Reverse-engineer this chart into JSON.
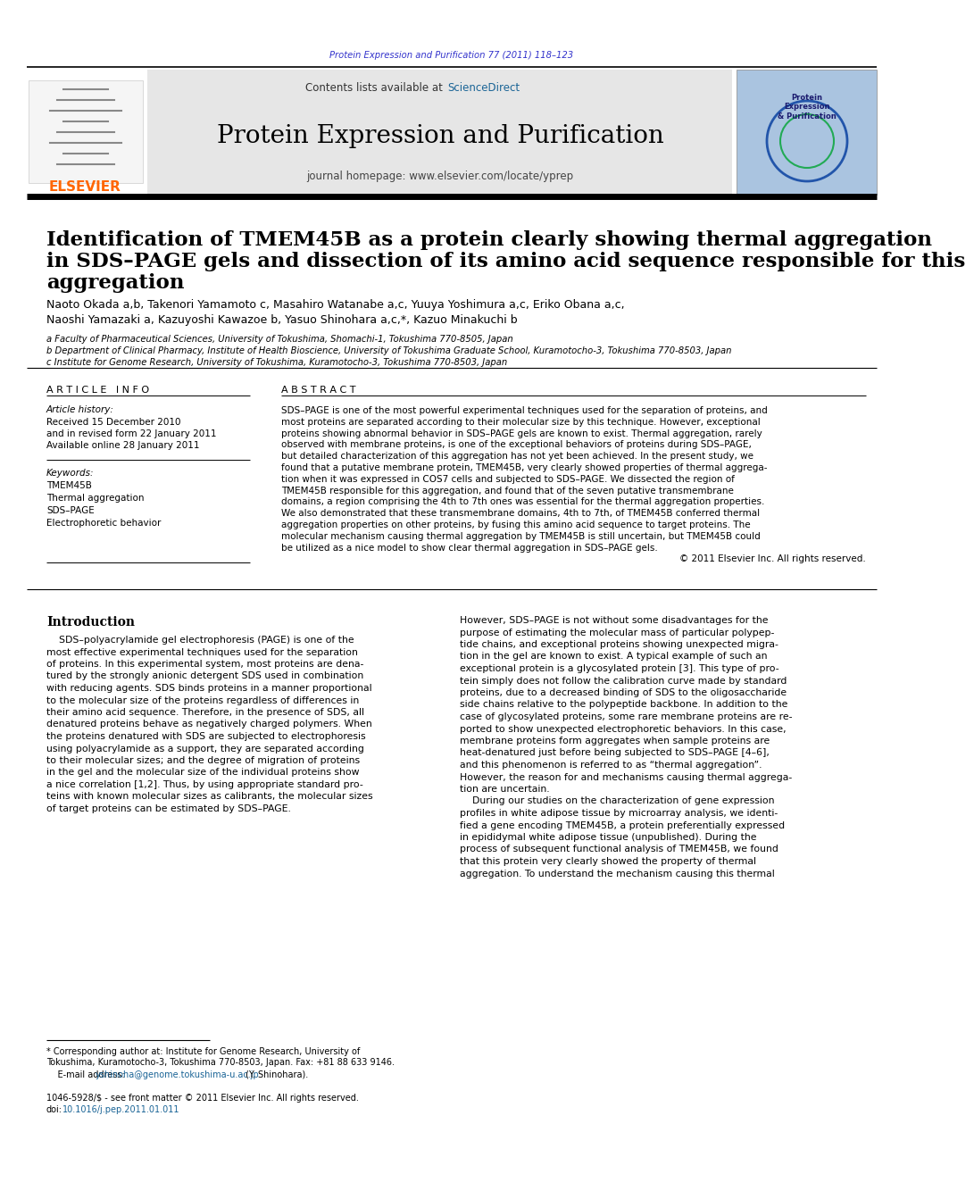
{
  "journal_ref": "Protein Expression and Purification 77 (2011) 118–123",
  "journal_ref_color": "#3333cc",
  "header_bg_color": "#e6e6e6",
  "header_text_contents": "Contents lists available at ",
  "header_sciencedirect": "ScienceDirect",
  "header_sciencedirect_color": "#1a6496",
  "journal_title": "Protein Expression and Purification",
  "journal_homepage": "journal homepage: www.elsevier.com/locate/yprep",
  "title_line1": "Identification of TMEM45B as a protein clearly showing thermal aggregation",
  "title_line2": "in SDS–PAGE gels and dissection of its amino acid sequence responsible for this",
  "title_line3": "aggregation",
  "authors_line1": "Naoto Okada a,b, Takenori Yamamoto c, Masahiro Watanabe a,c, Yuuya Yoshimura a,c, Eriko Obana a,c,",
  "authors_line2": "Naoshi Yamazaki a, Kazuyoshi Kawazoe b, Yasuo Shinohara a,c,*, Kazuo Minakuchi b",
  "affil_a": "a Faculty of Pharmaceutical Sciences, University of Tokushima, Shomachi-1, Tokushima 770-8505, Japan",
  "affil_b": "b Department of Clinical Pharmacy, Institute of Health Bioscience, University of Tokushima Graduate School, Kuramotocho-3, Tokushima 770-8503, Japan",
  "affil_c": "c Institute for Genome Research, University of Tokushima, Kuramotocho-3, Tokushima 770-8503, Japan",
  "article_info_title": "A R T I C L E   I N F O",
  "article_history_title": "Article history:",
  "received": "Received 15 December 2010",
  "revised": "and in revised form 22 January 2011",
  "available": "Available online 28 January 2011",
  "keywords_title": "Keywords:",
  "keywords": [
    "TMEM45B",
    "Thermal aggregation",
    "SDS–PAGE",
    "Electrophoretic behavior"
  ],
  "abstract_title": "A B S T R A C T",
  "abstract_lines": [
    "SDS–PAGE is one of the most powerful experimental techniques used for the separation of proteins, and",
    "most proteins are separated according to their molecular size by this technique. However, exceptional",
    "proteins showing abnormal behavior in SDS–PAGE gels are known to exist. Thermal aggregation, rarely",
    "observed with membrane proteins, is one of the exceptional behaviors of proteins during SDS–PAGE,",
    "but detailed characterization of this aggregation has not yet been achieved. In the present study, we",
    "found that a putative membrane protein, TMEM45B, very clearly showed properties of thermal aggrega-",
    "tion when it was expressed in COS7 cells and subjected to SDS–PAGE. We dissected the region of",
    "TMEM45B responsible for this aggregation, and found that of the seven putative transmembrane",
    "domains, a region comprising the 4th to 7th ones was essential for the thermal aggregation properties.",
    "We also demonstrated that these transmembrane domains, 4th to 7th, of TMEM45B conferred thermal",
    "aggregation properties on other proteins, by fusing this amino acid sequence to target proteins. The",
    "molecular mechanism causing thermal aggregation by TMEM45B is still uncertain, but TMEM45B could",
    "be utilized as a nice model to show clear thermal aggregation in SDS–PAGE gels.",
    "© 2011 Elsevier Inc. All rights reserved."
  ],
  "abstract_last_right": true,
  "intro_title": "Introduction",
  "intro_col1_lines": [
    "    SDS–polyacrylamide gel electrophoresis (PAGE) is one of the",
    "most effective experimental techniques used for the separation",
    "of proteins. In this experimental system, most proteins are dena-",
    "tured by the strongly anionic detergent SDS used in combination",
    "with reducing agents. SDS binds proteins in a manner proportional",
    "to the molecular size of the proteins regardless of differences in",
    "their amino acid sequence. Therefore, in the presence of SDS, all",
    "denatured proteins behave as negatively charged polymers. When",
    "the proteins denatured with SDS are subjected to electrophoresis",
    "using polyacrylamide as a support, they are separated according",
    "to their molecular sizes; and the degree of migration of proteins",
    "in the gel and the molecular size of the individual proteins show",
    "a nice correlation [1,2]. Thus, by using appropriate standard pro-",
    "teins with known molecular sizes as calibrants, the molecular sizes",
    "of target proteins can be estimated by SDS–PAGE."
  ],
  "intro_col2_lines": [
    "However, SDS–PAGE is not without some disadvantages for the",
    "purpose of estimating the molecular mass of particular polypep-",
    "tide chains, and exceptional proteins showing unexpected migra-",
    "tion in the gel are known to exist. A typical example of such an",
    "exceptional protein is a glycosylated protein [3]. This type of pro-",
    "tein simply does not follow the calibration curve made by standard",
    "proteins, due to a decreased binding of SDS to the oligosaccharide",
    "side chains relative to the polypeptide backbone. In addition to the",
    "case of glycosylated proteins, some rare membrane proteins are re-",
    "ported to show unexpected electrophoretic behaviors. In this case,",
    "membrane proteins form aggregates when sample proteins are",
    "heat-denatured just before being subjected to SDS–PAGE [4–6],",
    "and this phenomenon is referred to as “thermal aggregation”.",
    "However, the reason for and mechanisms causing thermal aggrega-",
    "tion are uncertain.",
    "    During our studies on the characterization of gene expression",
    "profiles in white adipose tissue by microarray analysis, we identi-",
    "fied a gene encoding TMEM45B, a protein preferentially expressed",
    "in epididymal white adipose tissue (unpublished). During the",
    "process of subsequent functional analysis of TMEM45B, we found",
    "that this protein very clearly showed the property of thermal",
    "aggregation. To understand the mechanism causing this thermal"
  ],
  "footnote_star": "* Corresponding author at: Institute for Genome Research, University of",
  "footnote_star2": "Tokushima, Kuramotocho-3, Tokushima 770-8503, Japan. Fax: +81 88 633 9146.",
  "footnote_email_label": "    E-mail address: ",
  "footnote_email_link": "yshinoha@genome.tokushima-u.ac.jp",
  "footnote_email_end": " (Y. Shinohara).",
  "footnote_issn": "1046-5928/$ - see front matter © 2011 Elsevier Inc. All rights reserved.",
  "footnote_doi_label": "doi:",
  "footnote_doi_link": "10.1016/j.pep.2011.01.011",
  "elsevier_color": "#ff6600",
  "link_color": "#1a6496",
  "doi_color": "#1a6496",
  "bg_color": "#ffffff",
  "text_color": "#000000",
  "separator_color": "#000000"
}
